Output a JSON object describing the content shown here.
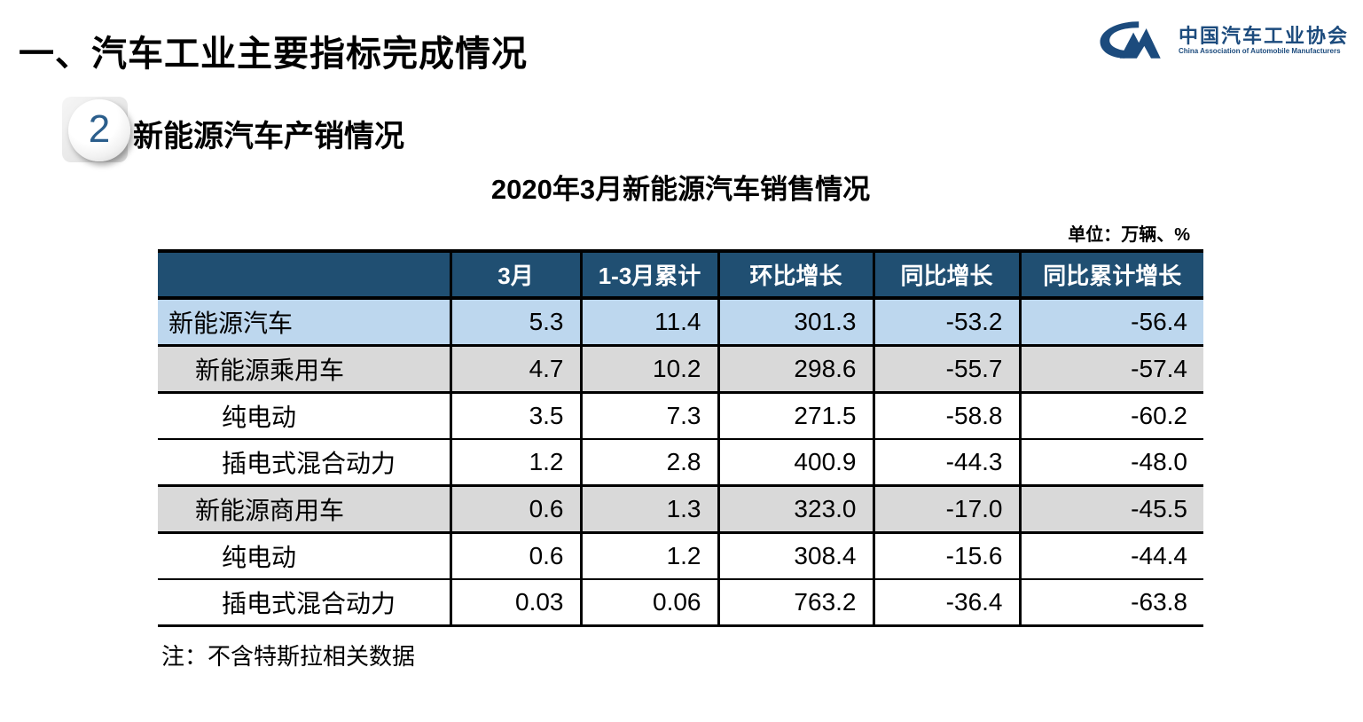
{
  "page": {
    "main_title": "一、汽车工业主要指标完成情况",
    "section": {
      "number": "2",
      "title": "新能源汽车产销情况"
    },
    "table_title": "2020年3月新能源汽车销售情况",
    "unit_note": "单位：万辆、%",
    "footnote": "注：不含特斯拉相关数据"
  },
  "logo": {
    "cn": "中国汽车工业协会",
    "en": "China Association of Automobile Manufacturers"
  },
  "colors": {
    "accent_blue": "#1c4b7d",
    "header_bg": "#204f72",
    "highlight_row": "#bdd7ee",
    "subtotal_row": "#d9d9d9",
    "border": "#000000"
  },
  "chart_data": {
    "type": "table",
    "title": "2020年3月新能源汽车销售情况",
    "unit": "万辆、%",
    "columns": [
      "",
      "3月",
      "1-3月累计",
      "环比增长",
      "同比增长",
      "同比累计增长"
    ],
    "rows": [
      {
        "label": "新能源汽车",
        "indent": 0,
        "values": [
          "5.3",
          "11.4",
          "301.3",
          "-53.2",
          "-56.4"
        ]
      },
      {
        "label": "新能源乘用车",
        "indent": 1,
        "values": [
          "4.7",
          "10.2",
          "298.6",
          "-55.7",
          "-57.4"
        ]
      },
      {
        "label": "纯电动",
        "indent": 2,
        "values": [
          "3.5",
          "7.3",
          "271.5",
          "-58.8",
          "-60.2"
        ]
      },
      {
        "label": "插电式混合动力",
        "indent": 2,
        "values": [
          "1.2",
          "2.8",
          "400.9",
          "-44.3",
          "-48.0"
        ]
      },
      {
        "label": "新能源商用车",
        "indent": 1,
        "values": [
          "0.6",
          "1.3",
          "323.0",
          "-17.0",
          "-45.5"
        ]
      },
      {
        "label": "纯电动",
        "indent": 2,
        "values": [
          "0.6",
          "1.2",
          "308.4",
          "-15.6",
          "-44.4"
        ]
      },
      {
        "label": "插电式混合动力",
        "indent": 2,
        "values": [
          "0.03",
          "0.06",
          "763.2",
          "-36.4",
          "-63.8"
        ]
      }
    ]
  }
}
